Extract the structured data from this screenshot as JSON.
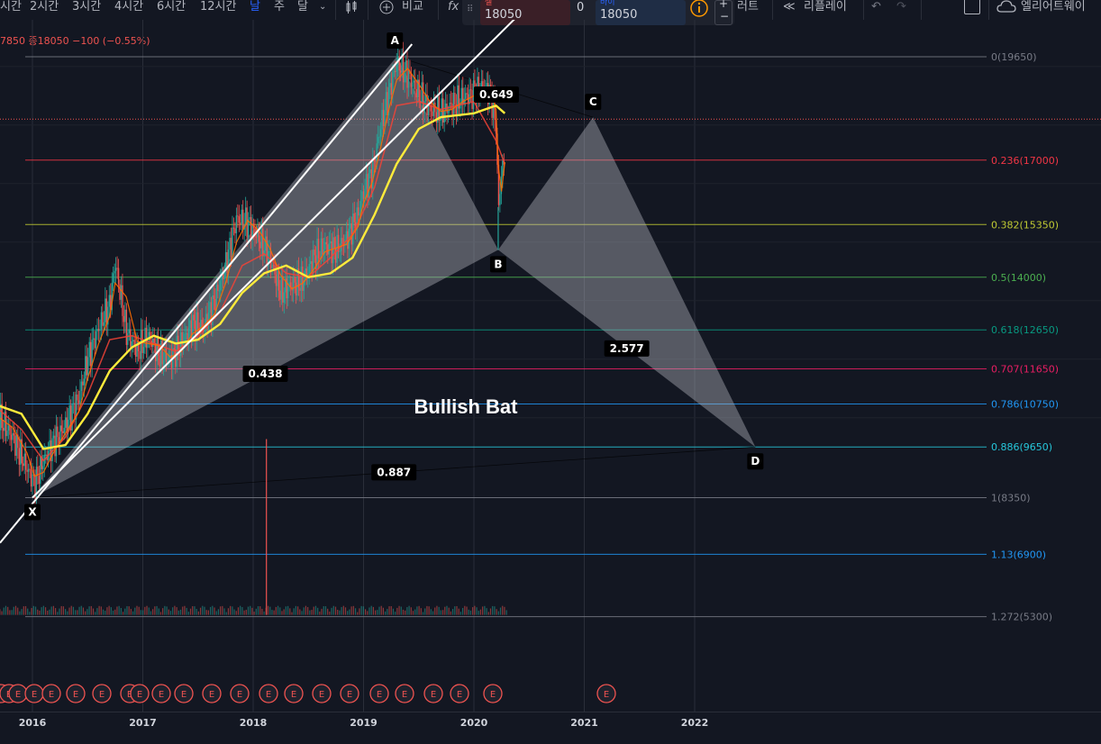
{
  "toolbar": {
    "intervals": [
      "시간",
      "2시간",
      "3시간",
      "4시간",
      "6시간",
      "12시간",
      "날",
      "주",
      "달"
    ],
    "active_interval": "날",
    "compare_label": "비교",
    "replay_label": "리플레이",
    "alert_partial": "러트",
    "alert_partial2": "엘리어트웨이"
  },
  "trade": {
    "sell_label": "셀",
    "sell_price": "18050",
    "spread": "0",
    "buy_label": "바이",
    "buy_price": "18050"
  },
  "ohlc": {
    "text": "7850  종18050  −100 (−0.55%)"
  },
  "colors": {
    "background": "#131722",
    "grid": "#2a2e39",
    "pattern_fill": "#b2b5be",
    "channel": "#ffffff",
    "ma_fast": "#ff6d00",
    "ma_mid": "#f44336",
    "ma_slow": "#ffeb3b",
    "candle_up": "#26a69a",
    "candle_down": "#ef5350"
  },
  "chart_data": {
    "type": "line",
    "title": "Bullish Bat",
    "xlabel": "",
    "ylabel": "",
    "x_ticks": [
      "2016",
      "2017",
      "2018",
      "2019",
      "2020",
      "2021",
      "2022"
    ],
    "ylim": [
      5300,
      20600
    ],
    "grid": true,
    "fib_levels": [
      {
        "label": "0(19650)",
        "ratio": 0,
        "price": 19650,
        "color": "#787b86"
      },
      {
        "label": "0.236(17000)",
        "ratio": 0.236,
        "price": 17000,
        "color": "#f23645"
      },
      {
        "label": "0.382(15350)",
        "ratio": 0.382,
        "price": 15350,
        "color": "#c0ca33"
      },
      {
        "label": "0.5(14000)",
        "ratio": 0.5,
        "price": 14000,
        "color": "#4caf50"
      },
      {
        "label": "0.618(12650)",
        "ratio": 0.618,
        "price": 12650,
        "color": "#089981"
      },
      {
        "label": "0.707(11650)",
        "ratio": 0.707,
        "price": 11650,
        "color": "#e91e63"
      },
      {
        "label": "0.786(10750)",
        "ratio": 0.786,
        "price": 10750,
        "color": "#2196f3"
      },
      {
        "label": "0.886(9650)",
        "ratio": 0.886,
        "price": 9650,
        "color": "#26c6da"
      },
      {
        "label": "1(8350)",
        "ratio": 1,
        "price": 8350,
        "color": "#787b86"
      },
      {
        "label": "1.13(6900)",
        "ratio": 1.13,
        "price": 6900,
        "color": "#2196f3"
      },
      {
        "label": "1.272(5300)",
        "ratio": 1.272,
        "price": 5300,
        "color": "#787b86"
      }
    ],
    "pattern_points": [
      {
        "label": "X",
        "x": 2016.0,
        "y": 8350
      },
      {
        "label": "A",
        "x": 2019.3,
        "y": 19650
      },
      {
        "label": "B",
        "x": 2020.22,
        "y": 14700
      },
      {
        "label": "C",
        "x": 2021.08,
        "y": 18100
      },
      {
        "label": "D",
        "x": 2022.55,
        "y": 9650
      }
    ],
    "ratios": [
      {
        "label": "0.438"
      },
      {
        "label": "0.649"
      },
      {
        "label": "2.577"
      },
      {
        "label": "0.887"
      }
    ],
    "current_price": 18050,
    "price_series": [
      [
        2015.7,
        10400
      ],
      [
        2015.82,
        9900
      ],
      [
        2015.95,
        9100
      ],
      [
        2016.02,
        8700
      ],
      [
        2016.1,
        9300
      ],
      [
        2016.2,
        9800
      ],
      [
        2016.3,
        10200
      ],
      [
        2016.42,
        10900
      ],
      [
        2016.5,
        11900
      ],
      [
        2016.6,
        12700
      ],
      [
        2016.7,
        13300
      ],
      [
        2016.75,
        14400
      ],
      [
        2016.85,
        12600
      ],
      [
        2016.95,
        12100
      ],
      [
        2017.05,
        12500
      ],
      [
        2017.15,
        12000
      ],
      [
        2017.25,
        11900
      ],
      [
        2017.35,
        12300
      ],
      [
        2017.45,
        12800
      ],
      [
        2017.55,
        12700
      ],
      [
        2017.65,
        13400
      ],
      [
        2017.75,
        14300
      ],
      [
        2017.85,
        15500
      ],
      [
        2017.95,
        15400
      ],
      [
        2018.05,
        15000
      ],
      [
        2018.15,
        14500
      ],
      [
        2018.25,
        13600
      ],
      [
        2018.35,
        13800
      ],
      [
        2018.45,
        13900
      ],
      [
        2018.55,
        14500
      ],
      [
        2018.65,
        14800
      ],
      [
        2018.75,
        14700
      ],
      [
        2018.85,
        15000
      ],
      [
        2018.95,
        15600
      ],
      [
        2019.0,
        16200
      ],
      [
        2019.08,
        16700
      ],
      [
        2019.15,
        17800
      ],
      [
        2019.22,
        18600
      ],
      [
        2019.3,
        19500
      ],
      [
        2019.4,
        19200
      ],
      [
        2019.5,
        18700
      ],
      [
        2019.6,
        18300
      ],
      [
        2019.7,
        18200
      ],
      [
        2019.8,
        18400
      ],
      [
        2019.9,
        18600
      ],
      [
        2020.0,
        18700
      ],
      [
        2020.08,
        18900
      ],
      [
        2020.15,
        18700
      ],
      [
        2020.2,
        17900
      ],
      [
        2020.22,
        15800
      ],
      [
        2020.25,
        16600
      ],
      [
        2020.28,
        17300
      ]
    ],
    "ma_slow_series": [
      [
        2015.7,
        10700
      ],
      [
        2015.9,
        10500
      ],
      [
        2016.1,
        9600
      ],
      [
        2016.3,
        9700
      ],
      [
        2016.5,
        10500
      ],
      [
        2016.7,
        11600
      ],
      [
        2016.9,
        12200
      ],
      [
        2017.1,
        12500
      ],
      [
        2017.3,
        12300
      ],
      [
        2017.5,
        12400
      ],
      [
        2017.7,
        12800
      ],
      [
        2017.9,
        13600
      ],
      [
        2018.1,
        14100
      ],
      [
        2018.3,
        14300
      ],
      [
        2018.5,
        14000
      ],
      [
        2018.7,
        14100
      ],
      [
        2018.9,
        14500
      ],
      [
        2019.1,
        15600
      ],
      [
        2019.3,
        16900
      ],
      [
        2019.5,
        17800
      ],
      [
        2019.7,
        18100
      ],
      [
        2020.0,
        18200
      ],
      [
        2020.2,
        18400
      ],
      [
        2020.28,
        18200
      ]
    ],
    "ma_mid_series": [
      [
        2015.7,
        10600
      ],
      [
        2015.9,
        10100
      ],
      [
        2016.1,
        9300
      ],
      [
        2016.3,
        9900
      ],
      [
        2016.5,
        11000
      ],
      [
        2016.7,
        12400
      ],
      [
        2016.9,
        12500
      ],
      [
        2017.1,
        12300
      ],
      [
        2017.3,
        12100
      ],
      [
        2017.5,
        12500
      ],
      [
        2017.7,
        13100
      ],
      [
        2017.9,
        14300
      ],
      [
        2018.1,
        14600
      ],
      [
        2018.3,
        14100
      ],
      [
        2018.5,
        14000
      ],
      [
        2018.7,
        14500
      ],
      [
        2018.9,
        15100
      ],
      [
        2019.1,
        16300
      ],
      [
        2019.3,
        18400
      ],
      [
        2019.5,
        18500
      ],
      [
        2019.7,
        18300
      ],
      [
        2020.0,
        18500
      ],
      [
        2020.2,
        17500
      ],
      [
        2020.28,
        16900
      ]
    ]
  }
}
